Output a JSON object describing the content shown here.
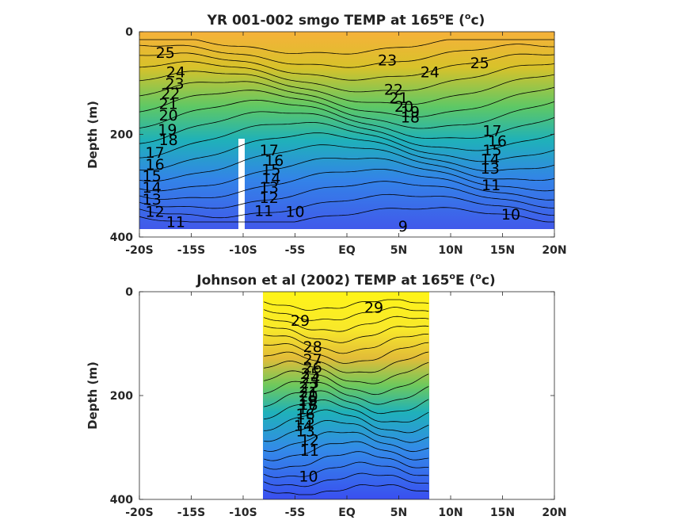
{
  "chart_data": [
    {
      "type": "contour",
      "title": "YR 001-002 smgo TEMP at 165",
      "title_degree": "o",
      "title_unit_prefix": "E (",
      "title_unit_sup": "o",
      "title_unit_suffix": "c)",
      "ylabel": "Depth (m)",
      "xlabel": "",
      "x_ticks": [
        "-20S",
        "-15S",
        "-10S",
        "-5S",
        "EQ",
        "5N",
        "10N",
        "15N",
        "20N"
      ],
      "x_tick_values": [
        -20,
        -15,
        -10,
        -5,
        0,
        5,
        10,
        15,
        20
      ],
      "y_ticks": [
        "0",
        "200",
        "400"
      ],
      "y_tick_values": [
        0,
        200,
        400
      ],
      "xlim": [
        -20,
        20
      ],
      "ylim": [
        0,
        400
      ],
      "y_reversed": true,
      "data_xlim": [
        -20,
        20
      ],
      "data_max_depth": 380,
      "missing_column": {
        "x": [
          -9.7,
          -9.1
        ],
        "depth": [
          205,
          400
        ]
      },
      "contour_levels": [
        9,
        10,
        11,
        12,
        13,
        14,
        15,
        16,
        17,
        18,
        19,
        20,
        21,
        22,
        23,
        24,
        25
      ],
      "contour_labels": [
        {
          "text": "25",
          "x": -17.5,
          "depth": 40
        },
        {
          "text": "24",
          "x": -16.5,
          "depth": 78
        },
        {
          "text": "23",
          "x": -16.6,
          "depth": 100
        },
        {
          "text": "22",
          "x": -17.0,
          "depth": 120
        },
        {
          "text": "21",
          "x": -17.2,
          "depth": 140
        },
        {
          "text": "20",
          "x": -17.2,
          "depth": 162
        },
        {
          "text": "19",
          "x": -17.3,
          "depth": 190
        },
        {
          "text": "18",
          "x": -17.2,
          "depth": 210
        },
        {
          "text": "17",
          "x": -18.5,
          "depth": 235
        },
        {
          "text": "16",
          "x": -18.5,
          "depth": 258
        },
        {
          "text": "15",
          "x": -18.8,
          "depth": 280
        },
        {
          "text": "14",
          "x": -18.8,
          "depth": 303
        },
        {
          "text": "13",
          "x": -18.8,
          "depth": 326
        },
        {
          "text": "12",
          "x": -18.5,
          "depth": 350
        },
        {
          "text": "11",
          "x": -16.5,
          "depth": 370
        },
        {
          "text": "17",
          "x": -7.5,
          "depth": 230
        },
        {
          "text": "16",
          "x": -7.0,
          "depth": 250
        },
        {
          "text": "15",
          "x": -7.3,
          "depth": 268
        },
        {
          "text": "14",
          "x": -7.3,
          "depth": 285
        },
        {
          "text": "13",
          "x": -7.5,
          "depth": 303
        },
        {
          "text": "12",
          "x": -7.5,
          "depth": 323
        },
        {
          "text": "11",
          "x": -8.0,
          "depth": 348
        },
        {
          "text": "10",
          "x": -5.0,
          "depth": 350
        },
        {
          "text": "23",
          "x": 3.9,
          "depth": 55
        },
        {
          "text": "24",
          "x": 8.0,
          "depth": 78
        },
        {
          "text": "25",
          "x": 12.8,
          "depth": 60
        },
        {
          "text": "22",
          "x": 4.5,
          "depth": 112
        },
        {
          "text": "21",
          "x": 5.0,
          "depth": 128
        },
        {
          "text": "20",
          "x": 5.5,
          "depth": 145
        },
        {
          "text": "19",
          "x": 6.1,
          "depth": 155
        },
        {
          "text": "18",
          "x": 6.1,
          "depth": 166
        },
        {
          "text": "17",
          "x": 14.0,
          "depth": 192
        },
        {
          "text": "16",
          "x": 14.5,
          "depth": 212
        },
        {
          "text": "15",
          "x": 14.0,
          "depth": 230
        },
        {
          "text": "14",
          "x": 13.8,
          "depth": 248
        },
        {
          "text": "13",
          "x": 13.8,
          "depth": 266
        },
        {
          "text": "11",
          "x": 13.9,
          "depth": 298
        },
        {
          "text": "10",
          "x": 15.8,
          "depth": 355
        },
        {
          "text": "9",
          "x": 5.4,
          "depth": 378
        }
      ]
    },
    {
      "type": "contour",
      "title": "Johnson et al (2002) TEMP at 165",
      "title_degree": "o",
      "title_unit_prefix": "E (",
      "title_unit_sup": "o",
      "title_unit_suffix": "c)",
      "ylabel": "Depth (m)",
      "xlabel": "",
      "x_ticks": [
        "-20S",
        "-15S",
        "-10S",
        "-5S",
        "EQ",
        "5N",
        "10N",
        "15N",
        "20N"
      ],
      "x_tick_values": [
        -20,
        -15,
        -10,
        -5,
        0,
        5,
        10,
        15,
        20
      ],
      "y_ticks": [
        "0",
        "200",
        "400"
      ],
      "y_tick_values": [
        0,
        200,
        400
      ],
      "xlim": [
        -20,
        20
      ],
      "ylim": [
        0,
        400
      ],
      "y_reversed": true,
      "data_xlim": [
        -8,
        8
      ],
      "data_max_depth": 400,
      "contour_levels": [
        10,
        11,
        12,
        13,
        14,
        15,
        16,
        17,
        18,
        19,
        20,
        21,
        22,
        23,
        24,
        25,
        26,
        27,
        28,
        29
      ],
      "contour_labels": [
        {
          "text": "29",
          "x": -4.5,
          "depth": 55
        },
        {
          "text": "29",
          "x": 2.6,
          "depth": 30
        },
        {
          "text": "28",
          "x": -3.3,
          "depth": 105
        },
        {
          "text": "27",
          "x": -3.3,
          "depth": 130
        },
        {
          "text": "26",
          "x": -3.3,
          "depth": 145
        },
        {
          "text": "25",
          "x": -3.5,
          "depth": 157
        },
        {
          "text": "24",
          "x": -3.5,
          "depth": 166
        },
        {
          "text": "23",
          "x": -3.6,
          "depth": 175
        },
        {
          "text": "22",
          "x": -3.7,
          "depth": 184
        },
        {
          "text": "21",
          "x": -3.7,
          "depth": 193
        },
        {
          "text": "20",
          "x": -3.7,
          "depth": 201
        },
        {
          "text": "19",
          "x": -3.8,
          "depth": 209
        },
        {
          "text": "18",
          "x": -3.7,
          "depth": 217
        },
        {
          "text": "17",
          "x": -3.8,
          "depth": 225
        },
        {
          "text": "16",
          "x": -4.0,
          "depth": 235
        },
        {
          "text": "15",
          "x": -4.0,
          "depth": 245
        },
        {
          "text": "14",
          "x": -4.2,
          "depth": 257
        },
        {
          "text": "13",
          "x": -4.0,
          "depth": 268
        },
        {
          "text": "12",
          "x": -3.6,
          "depth": 285
        },
        {
          "text": "11",
          "x": -3.6,
          "depth": 305
        },
        {
          "text": "10",
          "x": -3.7,
          "depth": 355
        }
      ]
    }
  ]
}
